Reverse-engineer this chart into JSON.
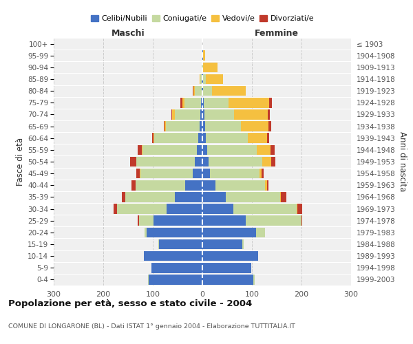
{
  "age_groups": [
    "0-4",
    "5-9",
    "10-14",
    "15-19",
    "20-24",
    "25-29",
    "30-34",
    "35-39",
    "40-44",
    "45-49",
    "50-54",
    "55-59",
    "60-64",
    "65-69",
    "70-74",
    "75-79",
    "80-84",
    "85-89",
    "90-94",
    "95-99",
    "100+"
  ],
  "birth_years": [
    "1999-2003",
    "1994-1998",
    "1989-1993",
    "1984-1988",
    "1979-1983",
    "1974-1978",
    "1969-1973",
    "1964-1968",
    "1959-1963",
    "1954-1958",
    "1949-1953",
    "1944-1948",
    "1939-1943",
    "1934-1938",
    "1929-1933",
    "1924-1928",
    "1919-1923",
    "1914-1918",
    "1909-1913",
    "1904-1908",
    "≤ 1903"
  ],
  "maschi": {
    "celibi": [
      108,
      103,
      118,
      88,
      112,
      98,
      72,
      55,
      35,
      20,
      15,
      11,
      9,
      6,
      4,
      3,
      2,
      1,
      0,
      0,
      0
    ],
    "coniugati": [
      2,
      0,
      0,
      1,
      5,
      30,
      100,
      100,
      100,
      105,
      118,
      110,
      88,
      68,
      52,
      33,
      13,
      3,
      1,
      0,
      0
    ],
    "vedovi": [
      0,
      0,
      0,
      0,
      0,
      0,
      0,
      0,
      0,
      1,
      1,
      1,
      2,
      3,
      5,
      4,
      3,
      1,
      0,
      0,
      0
    ],
    "divorziati": [
      0,
      0,
      0,
      0,
      0,
      2,
      7,
      7,
      8,
      8,
      12,
      8,
      2,
      1,
      2,
      5,
      1,
      0,
      0,
      0,
      0
    ]
  },
  "femmine": {
    "nubili": [
      103,
      98,
      112,
      80,
      108,
      88,
      62,
      47,
      27,
      15,
      13,
      10,
      7,
      5,
      4,
      3,
      2,
      1,
      0,
      1,
      0
    ],
    "coniugate": [
      2,
      0,
      0,
      3,
      18,
      112,
      128,
      110,
      100,
      100,
      108,
      100,
      85,
      73,
      60,
      50,
      18,
      6,
      2,
      0,
      0
    ],
    "vedove": [
      0,
      0,
      0,
      0,
      0,
      0,
      1,
      2,
      3,
      5,
      18,
      28,
      38,
      55,
      68,
      82,
      68,
      35,
      28,
      5,
      0
    ],
    "divorziate": [
      0,
      0,
      0,
      0,
      0,
      2,
      10,
      10,
      4,
      3,
      8,
      8,
      5,
      6,
      4,
      5,
      0,
      0,
      0,
      0,
      0
    ]
  },
  "colors": {
    "celibi": "#4472c4",
    "coniugati": "#c5d9a0",
    "vedovi": "#f5c040",
    "divorziati": "#c0392b"
  },
  "xlim": 300,
  "title": "Popolazione per età, sesso e stato civile - 2004",
  "subtitle": "COMUNE DI LONGARONE (BL) - Dati ISTAT 1° gennaio 2004 - Elaborazione TUTTITALIA.IT",
  "xlabel_left": "Maschi",
  "xlabel_right": "Femmine",
  "ylabel_left": "Fasce di età",
  "ylabel_right": "Anni di nascita",
  "legend_labels": [
    "Celibi/Nubili",
    "Coniugati/e",
    "Vedovi/e",
    "Divorziati/e"
  ],
  "bg_color": "#ffffff",
  "plot_bg_color": "#f0f0f0"
}
